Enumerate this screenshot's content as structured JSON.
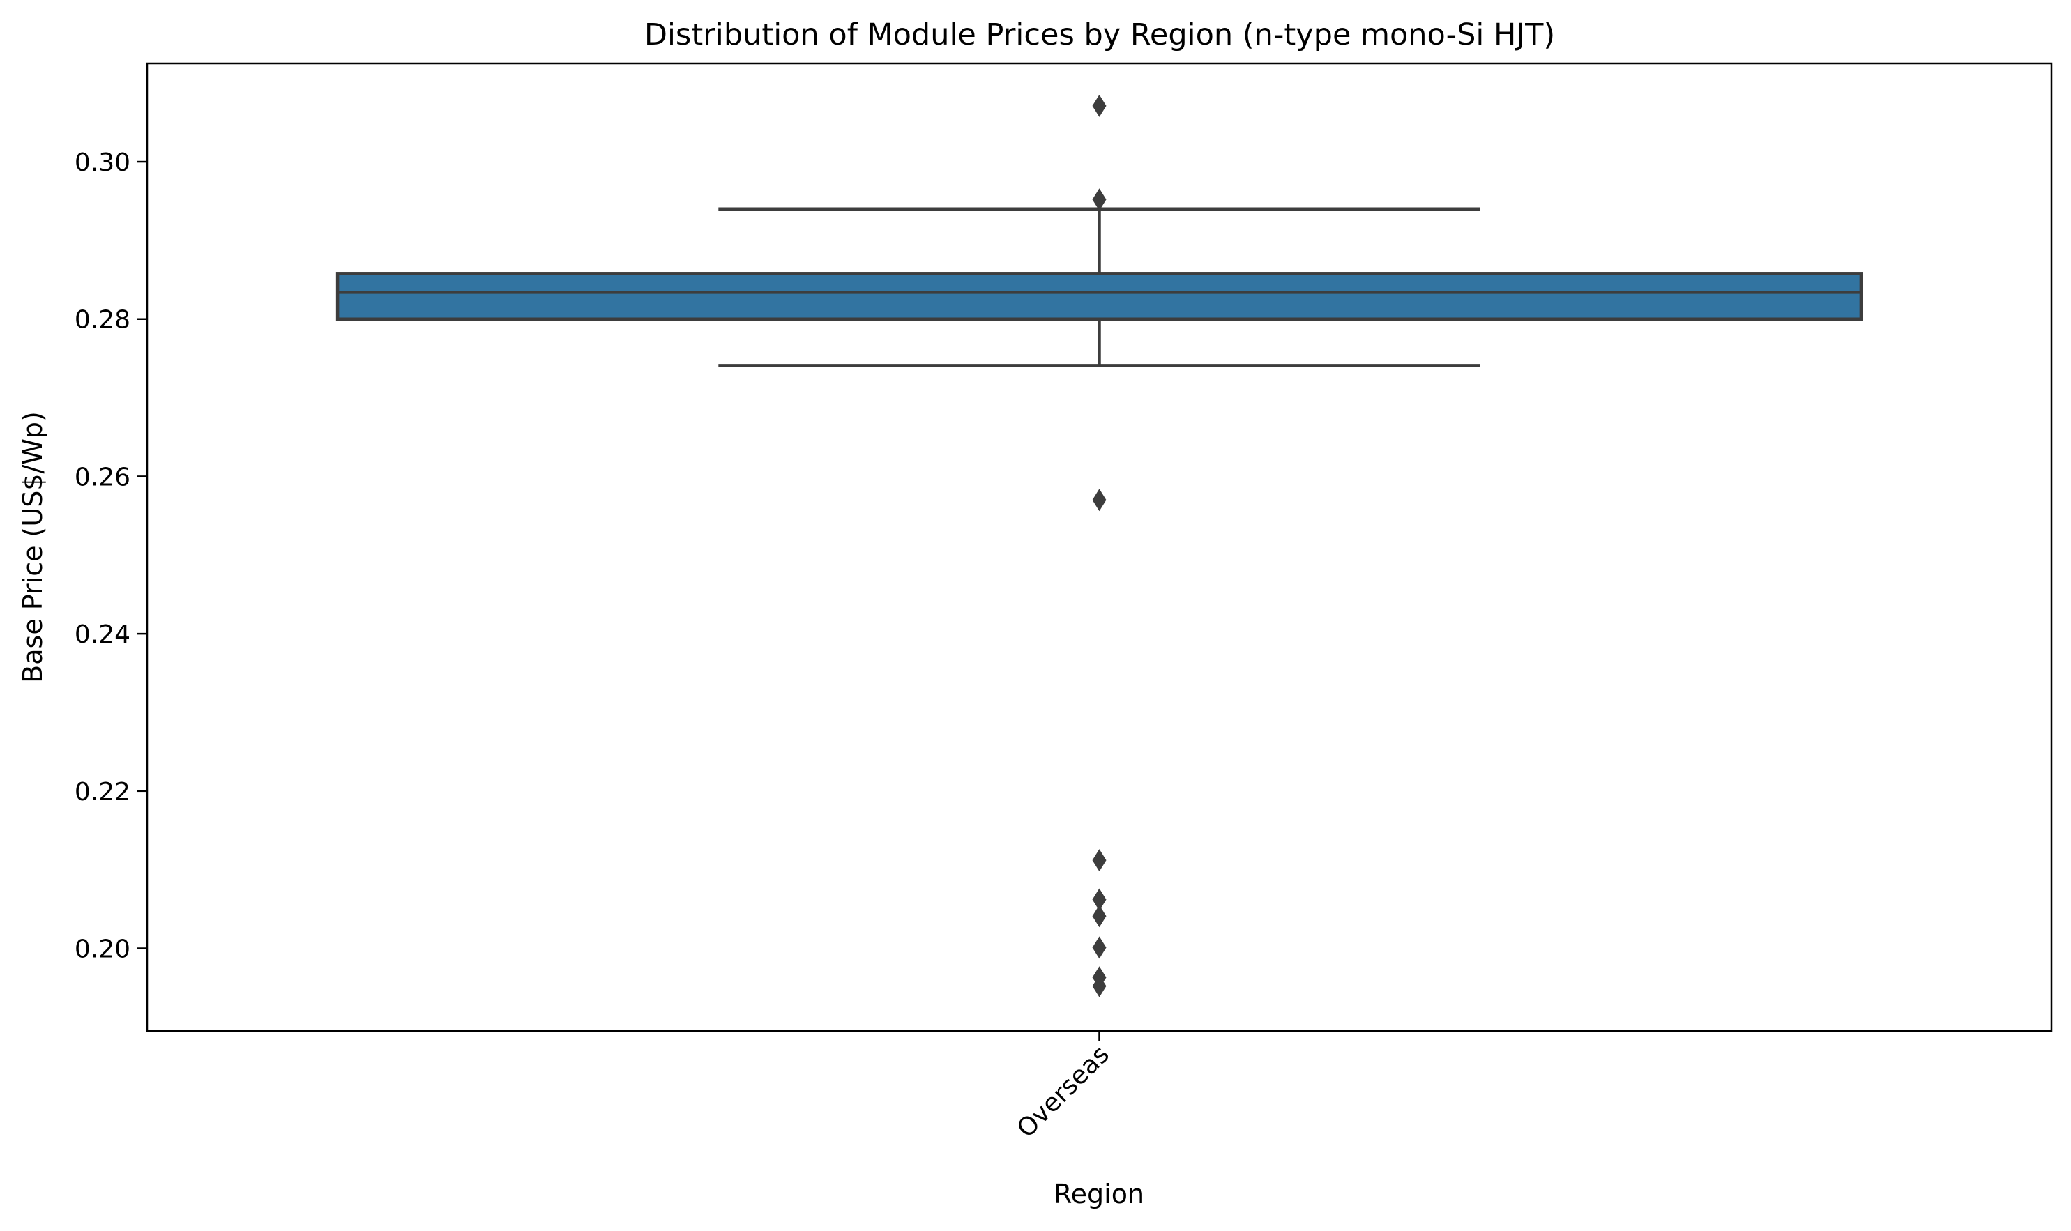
{
  "chart_data": {
    "type": "box",
    "title": "Distribution of Module Prices by Region (n-type mono-Si HJT)",
    "xlabel": "Region",
    "ylabel": "Base Price (US$/Wp)",
    "categories": [
      "Overseas"
    ],
    "ylim": [
      0.1895,
      0.3125
    ],
    "yticks": [
      0.2,
      0.22,
      0.24,
      0.26,
      0.28,
      0.3
    ],
    "ytick_labels": [
      "0.20",
      "0.22",
      "0.24",
      "0.26",
      "0.28",
      "0.30"
    ],
    "grid": false,
    "boxes": [
      {
        "category": "Overseas",
        "q1": 0.28,
        "median": 0.2834,
        "q3": 0.2858,
        "whisker_low": 0.2741,
        "whisker_high": 0.294,
        "outliers": [
          0.3071,
          0.2952,
          0.257,
          0.2112,
          0.2062,
          0.2041,
          0.2001,
          0.1963,
          0.1952
        ]
      }
    ],
    "colors": {
      "box_fill": "#3274a1",
      "line": "#3d3d3d",
      "outlier": "#3d3d3d"
    }
  }
}
